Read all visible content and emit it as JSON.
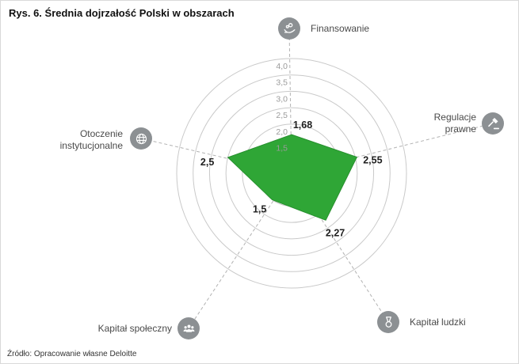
{
  "title": "Rys. 6. Średnia dojrzałość Polski w obszarach",
  "source": "Źródło: Opracowanie własne Deloitte",
  "colors": {
    "series_fill": "#2fa636",
    "series_stroke": "#27902e",
    "ring": "#c9c9c9",
    "axis_dash": "#b3b3b3",
    "icon_bg": "#8c9093",
    "icon_glyph": "#ffffff",
    "ring_label": "#9b9b9b",
    "value_label": "#1f1f1f",
    "category_label": "#4a4a4a"
  },
  "chart_data": {
    "type": "radar",
    "title": "Średnia dojrzałość Polski w obszarach",
    "categories": [
      {
        "label": "Finansowanie",
        "icon": "hand-coins-icon",
        "value": 1.68,
        "value_display": "1,68"
      },
      {
        "label": "Regulacje prawne",
        "icon": "gavel-icon",
        "value": 2.55,
        "value_display": "2,55"
      },
      {
        "label": "Kapitał ludzki",
        "icon": "medal-icon",
        "value": 2.27,
        "value_display": "2,27"
      },
      {
        "label": "Kapitał społeczny",
        "icon": "people-icon",
        "value": 1.5,
        "value_display": "1,5"
      },
      {
        "label": "Otoczenie instytucjonalne",
        "icon": "globe-icon",
        "value": 2.5,
        "value_display": "2,5"
      }
    ],
    "scale": {
      "min": 0.5,
      "max": 4.0,
      "step": 0.5,
      "ring_values": [
        1.0,
        1.5,
        2.0,
        2.5,
        3.0,
        3.5,
        4.0
      ],
      "labeled_rings": [
        {
          "value": 4.0,
          "label": "4,0"
        },
        {
          "value": 3.5,
          "label": "3,5"
        },
        {
          "value": 3.0,
          "label": "3,0"
        },
        {
          "value": 2.5,
          "label": "2,5"
        },
        {
          "value": 2.0,
          "label": "2,0"
        },
        {
          "value": 1.5,
          "label": "1,5"
        }
      ]
    },
    "grid": "concentric-circles",
    "legend_position": "none"
  }
}
